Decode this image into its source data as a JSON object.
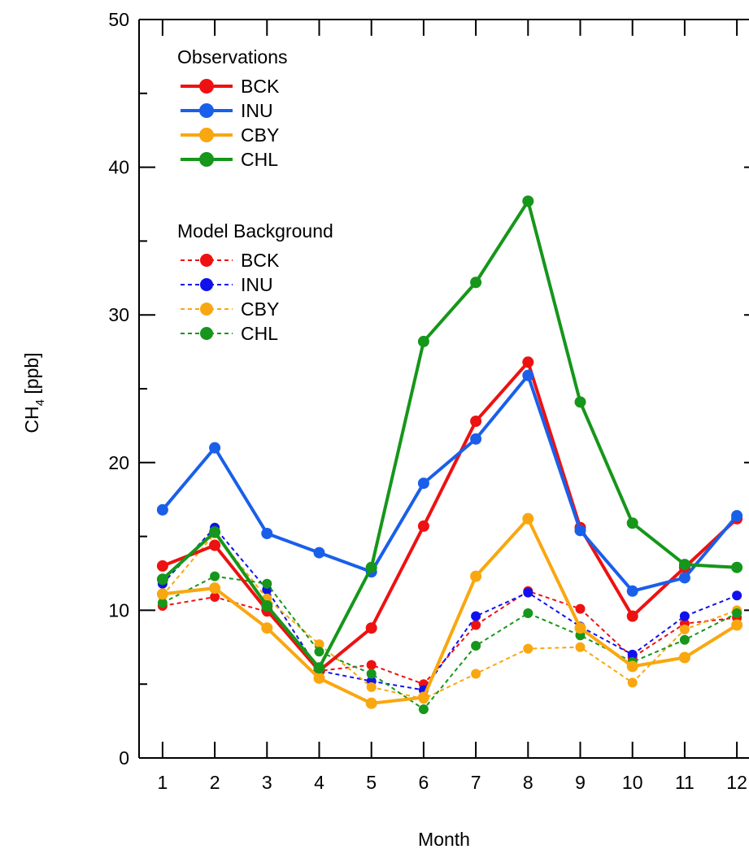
{
  "chart_data": {
    "type": "line",
    "xlabel": "Month",
    "ylabel_main": "CH",
    "ylabel_sub": "4",
    "ylabel_unit": " [ppb]",
    "x": [
      1,
      2,
      3,
      4,
      5,
      6,
      7,
      8,
      9,
      10,
      11,
      12
    ],
    "xlim": [
      0.55,
      12.45
    ],
    "ylim": [
      0,
      50
    ],
    "y_ticks": [
      0,
      10,
      20,
      30,
      40,
      50
    ],
    "grid": false,
    "legend_position": "top-left",
    "legend_groups": [
      {
        "title": "Observations",
        "style": "solid"
      },
      {
        "title": "Model Background",
        "style": "dashed"
      }
    ],
    "series": [
      {
        "group": "Observations",
        "name": "BCK",
        "color": "#ee1111",
        "style": "solid",
        "values": [
          13.0,
          14.4,
          10.0,
          5.9,
          8.8,
          15.7,
          22.8,
          26.8,
          15.6,
          9.6,
          12.9,
          16.2
        ]
      },
      {
        "group": "Observations",
        "name": "INU",
        "color": "#1a5fea",
        "style": "solid",
        "values": [
          16.8,
          21.0,
          15.2,
          13.9,
          12.6,
          18.6,
          21.6,
          25.9,
          15.4,
          11.3,
          12.2,
          16.4
        ]
      },
      {
        "group": "Observations",
        "name": "CBY",
        "color": "#f9a710",
        "style": "solid",
        "values": [
          11.1,
          11.5,
          8.8,
          5.4,
          3.7,
          4.1,
          12.3,
          16.2,
          8.8,
          6.2,
          6.8,
          9.0
        ]
      },
      {
        "group": "Observations",
        "name": "CHL",
        "color": "#16961a",
        "style": "solid",
        "values": [
          12.1,
          15.3,
          10.3,
          6.1,
          12.9,
          28.2,
          32.2,
          37.7,
          24.1,
          15.9,
          13.1,
          12.9
        ]
      },
      {
        "group": "Model Background",
        "name": "BCK",
        "color": "#ee1111",
        "style": "dashed",
        "values": [
          10.3,
          10.9,
          9.9,
          5.9,
          6.3,
          5.0,
          9.0,
          11.3,
          10.1,
          6.8,
          9.1,
          9.5
        ]
      },
      {
        "group": "Model Background",
        "name": "INU",
        "color": "#1111ee",
        "style": "dashed",
        "values": [
          11.8,
          15.6,
          11.4,
          5.9,
          5.2,
          4.6,
          9.6,
          11.2,
          8.9,
          7.0,
          9.6,
          11.0
        ]
      },
      {
        "group": "Model Background",
        "name": "CBY",
        "color": "#f9a710",
        "style": "dashed",
        "values": [
          11.0,
          15.2,
          10.8,
          7.7,
          4.8,
          4.0,
          5.7,
          7.4,
          7.5,
          5.1,
          8.7,
          10.0
        ]
      },
      {
        "group": "Model Background",
        "name": "CHL",
        "color": "#16961a",
        "style": "dashed",
        "values": [
          10.5,
          12.3,
          11.8,
          7.2,
          5.7,
          3.3,
          7.6,
          9.8,
          8.3,
          6.5,
          8.0,
          9.8
        ]
      }
    ]
  }
}
